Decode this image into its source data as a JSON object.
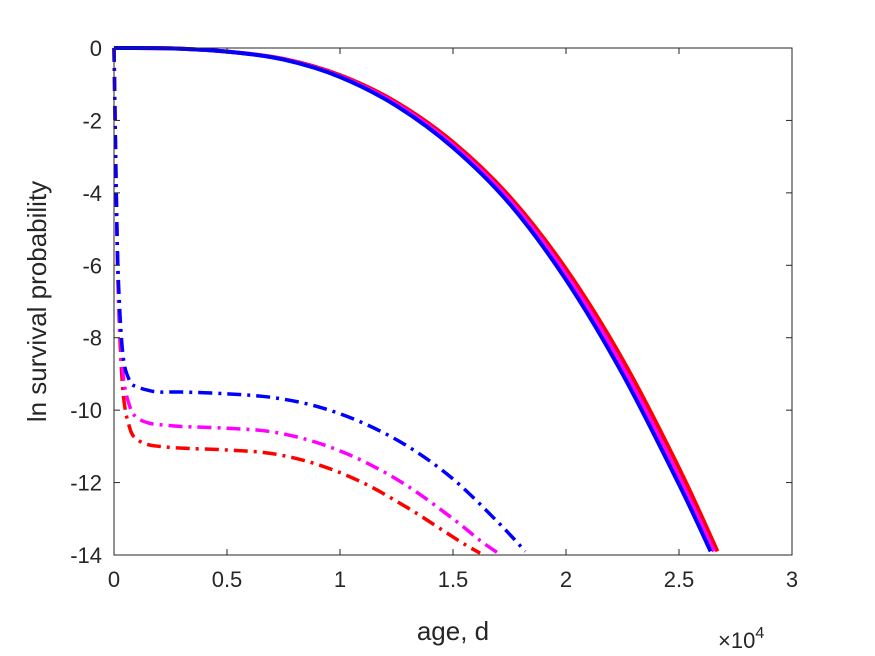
{
  "chart_data": {
    "type": "line",
    "xlabel": "age, d",
    "ylabel": "ln survival probability",
    "x_exponent_label": {
      "base": "×10",
      "exp": "4"
    },
    "xlim": [
      0,
      30000
    ],
    "ylim": [
      -14,
      0
    ],
    "x_ticks": [
      0,
      5000,
      10000,
      15000,
      20000,
      25000,
      30000
    ],
    "x_tick_labels": [
      "0",
      "0.5",
      "1",
      "1.5",
      "2",
      "2.5",
      "3"
    ],
    "y_ticks": [
      0,
      -2,
      -4,
      -6,
      -8,
      -10,
      -12,
      -14
    ],
    "y_tick_labels": [
      "0",
      "-2",
      "-4",
      "-6",
      "-8",
      "-10",
      "-12",
      "-14"
    ],
    "grid": false,
    "box": true,
    "series": [
      {
        "color": "#ff0000",
        "style": "solid",
        "x": [
          0,
          2500,
          5000,
          7500,
          10000,
          12500,
          15000,
          17500,
          20000,
          22500,
          25000,
          26700
        ],
        "y": [
          0,
          -0.01,
          -0.1,
          -0.3,
          -0.75,
          -1.5,
          -2.6,
          -4.1,
          -6.1,
          -8.6,
          -11.6,
          -13.9
        ]
      },
      {
        "color": "#ff00ff",
        "style": "solid",
        "x": [
          0,
          2500,
          5000,
          7500,
          10000,
          12500,
          15000,
          17500,
          20000,
          22500,
          25000,
          26550
        ],
        "y": [
          0,
          -0.01,
          -0.1,
          -0.31,
          -0.78,
          -1.55,
          -2.68,
          -4.2,
          -6.25,
          -8.8,
          -11.85,
          -13.9
        ]
      },
      {
        "color": "#0000ff",
        "style": "solid",
        "x": [
          0,
          2500,
          5000,
          7500,
          10000,
          12500,
          15000,
          17500,
          20000,
          22500,
          25000,
          26400
        ],
        "y": [
          0,
          -0.01,
          -0.1,
          -0.32,
          -0.8,
          -1.6,
          -2.75,
          -4.3,
          -6.4,
          -9.0,
          -12.05,
          -13.9
        ]
      },
      {
        "color": "#ff0000",
        "style": "dashdot",
        "x": [
          0,
          100,
          200,
          400,
          700,
          1000,
          1500,
          2000,
          3000,
          5000,
          7000,
          9000,
          11000,
          13000,
          14500,
          15500,
          16200
        ],
        "y": [
          0,
          -4.0,
          -7.0,
          -9.5,
          -10.5,
          -10.8,
          -10.95,
          -11.0,
          -11.05,
          -11.1,
          -11.2,
          -11.5,
          -12.0,
          -12.7,
          -13.3,
          -13.7,
          -13.95
        ]
      },
      {
        "color": "#ff00ff",
        "style": "dashdot",
        "x": [
          0,
          100,
          200,
          400,
          700,
          1000,
          1500,
          2000,
          3000,
          5000,
          7000,
          9000,
          11000,
          13000,
          15000,
          16200,
          17000
        ],
        "y": [
          0,
          -4.0,
          -6.8,
          -9.0,
          -9.9,
          -10.2,
          -10.35,
          -10.4,
          -10.45,
          -10.5,
          -10.6,
          -10.9,
          -11.4,
          -12.1,
          -13.0,
          -13.6,
          -13.95
        ]
      },
      {
        "color": "#0000ff",
        "style": "dashdot",
        "x": [
          0,
          100,
          200,
          400,
          700,
          1000,
          1500,
          2000,
          3000,
          5000,
          7000,
          9000,
          11000,
          13000,
          15000,
          17000,
          18200
        ],
        "y": [
          0,
          -4.0,
          -6.5,
          -8.5,
          -9.2,
          -9.35,
          -9.45,
          -9.5,
          -9.5,
          -9.55,
          -9.65,
          -9.9,
          -10.35,
          -11.0,
          -11.9,
          -13.1,
          -13.9
        ]
      }
    ]
  }
}
